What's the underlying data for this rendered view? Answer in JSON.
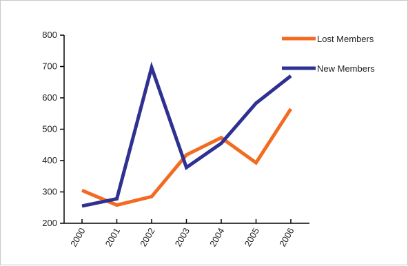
{
  "chart_data": {
    "type": "line",
    "categories": [
      "2000",
      "2001",
      "2002",
      "2003",
      "2004",
      "2005",
      "2006"
    ],
    "series": [
      {
        "name": "Lost Members",
        "color": "#f26b21",
        "values": [
          305,
          258,
          285,
          418,
          473,
          393,
          565
        ]
      },
      {
        "name": "New Members",
        "color": "#2e3192",
        "values": [
          255,
          278,
          697,
          378,
          455,
          583,
          670
        ]
      }
    ],
    "ylim": [
      200,
      800
    ],
    "yticks": [
      200,
      300,
      400,
      500,
      600,
      700,
      800
    ],
    "title": "",
    "xlabel": "",
    "ylabel": "",
    "grid": false,
    "legend": "top-right"
  }
}
